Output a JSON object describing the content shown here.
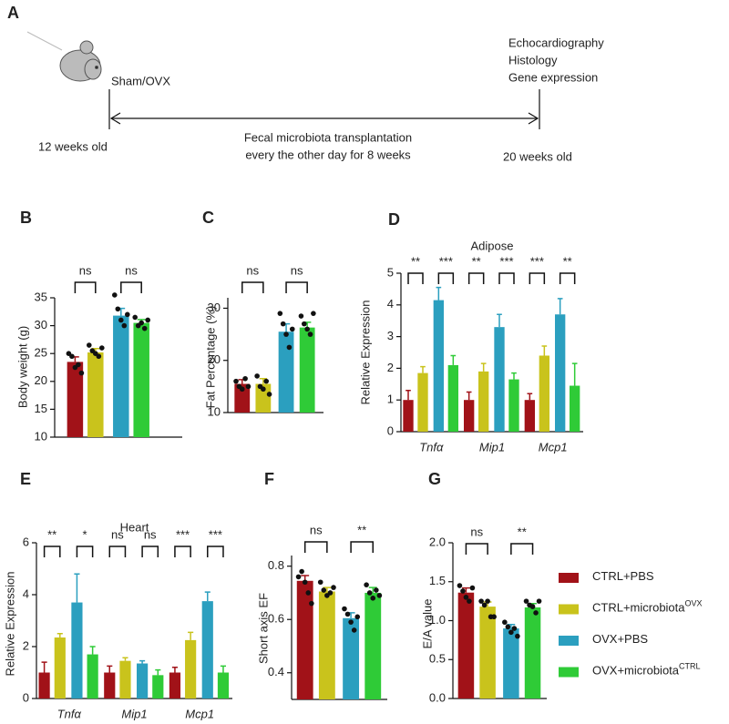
{
  "schematic": {
    "label": "A",
    "start_event": "Sham/OVX",
    "start_age": "12 weeks old",
    "treatment": [
      "Fecal microbiota transplantation",
      "every the other day for 8 weeks"
    ],
    "end_age": "20 weeks old",
    "endpoints": [
      "Echocardiography",
      "Histology",
      "Gene expression"
    ]
  },
  "legend": [
    {
      "name": "CTRL+PBS",
      "color": "#a11218"
    },
    {
      "name": "CTRL+microbiota",
      "sup": "OVX",
      "color": "#c9c31c"
    },
    {
      "name": "OVX+PBS",
      "color": "#2b9fbf"
    },
    {
      "name": "OVX+microbiota",
      "sup": "CTRL",
      "color": "#2fcb37"
    }
  ],
  "chart_data": [
    {
      "type": "bar",
      "label": "B",
      "ylabel": "Body weight (g)",
      "ylim": [
        10,
        35
      ],
      "yticks": [
        10,
        15,
        20,
        25,
        30,
        35
      ],
      "series": [
        {
          "values": [
            23.5
          ],
          "errors": [
            0.9
          ],
          "points": [
            [
              25,
              24.5,
              22.5,
              23,
              21.5
            ]
          ]
        },
        {
          "values": [
            25.2
          ],
          "errors": [
            0.7
          ],
          "points": [
            [
              26.5,
              25.5,
              25,
              24.5,
              26
            ]
          ]
        },
        {
          "values": [
            31.8
          ],
          "errors": [
            1.3
          ],
          "points": [
            [
              35.5,
              33,
              31,
              30,
              32
            ]
          ]
        },
        {
          "values": [
            30.5
          ],
          "errors": [
            0.6
          ],
          "points": [
            [
              31.5,
              30,
              30.5,
              29.5,
              31
            ]
          ]
        }
      ],
      "significance": [
        [
          "ns",
          "ns"
        ]
      ]
    },
    {
      "type": "bar",
      "label": "C",
      "ylabel": "Fat Percentage (%)",
      "ylim": [
        10,
        32
      ],
      "yticks": [
        10,
        20,
        30
      ],
      "series": [
        {
          "values": [
            15.5
          ],
          "errors": [
            0.8
          ],
          "points": [
            [
              16,
              15,
              14.5,
              16.5,
              15
            ]
          ]
        },
        {
          "values": [
            15.5
          ],
          "errors": [
            1.0
          ],
          "points": [
            [
              17,
              15,
              14.5,
              16,
              13.5
            ]
          ]
        },
        {
          "values": [
            25.5
          ],
          "errors": [
            1.5
          ],
          "points": [
            [
              29,
              27,
              25,
              22.5,
              26
            ]
          ]
        },
        {
          "values": [
            26.3
          ],
          "errors": [
            1.0
          ],
          "points": [
            [
              28.5,
              27,
              26,
              25,
              29
            ]
          ]
        }
      ],
      "significance": [
        [
          "ns",
          "ns"
        ]
      ]
    },
    {
      "type": "bar",
      "label": "D",
      "title": "Adipose",
      "ylabel": "Relative Expression",
      "ylim": [
        0,
        5
      ],
      "yticks": [
        0,
        1,
        2,
        3,
        4,
        5
      ],
      "categories": [
        "Tnfα",
        "Mip1",
        "Mcp1"
      ],
      "series": [
        {
          "values": [
            1.0,
            1.0,
            1.0
          ],
          "errors": [
            0.3,
            0.25,
            0.2
          ]
        },
        {
          "values": [
            1.85,
            1.9,
            2.4
          ],
          "errors": [
            0.2,
            0.25,
            0.3
          ]
        },
        {
          "values": [
            4.15,
            3.3,
            3.7
          ],
          "errors": [
            0.4,
            0.4,
            0.5
          ]
        },
        {
          "values": [
            2.1,
            1.65,
            1.45
          ],
          "errors": [
            0.3,
            0.2,
            0.7
          ]
        }
      ],
      "significance": [
        [
          "**",
          "***"
        ],
        [
          "**",
          "***"
        ],
        [
          "***",
          "**"
        ]
      ]
    },
    {
      "type": "bar",
      "label": "E",
      "title": "Heart",
      "ylabel": "Relative Expression",
      "ylim": [
        0,
        6
      ],
      "yticks": [
        0,
        2,
        4,
        6
      ],
      "categories": [
        "Tnfα",
        "Mip1",
        "Mcp1"
      ],
      "series": [
        {
          "values": [
            1.0,
            1.0,
            1.0
          ],
          "errors": [
            0.4,
            0.25,
            0.2
          ]
        },
        {
          "values": [
            2.35,
            1.45,
            2.25
          ],
          "errors": [
            0.15,
            0.12,
            0.3
          ]
        },
        {
          "values": [
            3.7,
            1.35,
            3.75
          ],
          "errors": [
            1.1,
            0.1,
            0.35
          ]
        },
        {
          "values": [
            1.7,
            0.9,
            1.0
          ],
          "errors": [
            0.3,
            0.2,
            0.25
          ]
        }
      ],
      "significance": [
        [
          "**",
          "*"
        ],
        [
          "ns",
          "ns"
        ],
        [
          "***",
          "***"
        ]
      ]
    },
    {
      "type": "bar",
      "label": "F",
      "ylabel": "Short axis EF",
      "ylim": [
        0.3,
        0.84
      ],
      "yticks": [
        0.4,
        0.6,
        0.8
      ],
      "series": [
        {
          "values": [
            0.745
          ],
          "errors": [
            0.02
          ],
          "points": [
            [
              0.76,
              0.78,
              0.74,
              0.7,
              0.66
            ]
          ]
        },
        {
          "values": [
            0.705
          ],
          "errors": [
            0.015
          ],
          "points": [
            [
              0.74,
              0.71,
              0.69,
              0.7,
              0.72
            ]
          ]
        },
        {
          "values": [
            0.605
          ],
          "errors": [
            0.02
          ],
          "points": [
            [
              0.64,
              0.62,
              0.59,
              0.56,
              0.61
            ]
          ]
        },
        {
          "values": [
            0.7
          ],
          "errors": [
            0.02
          ],
          "points": [
            [
              0.73,
              0.7,
              0.68,
              0.71,
              0.69
            ]
          ]
        }
      ],
      "significance": [
        [
          "ns",
          "**"
        ]
      ]
    },
    {
      "type": "bar",
      "label": "G",
      "ylabel": "E/A value",
      "ylim": [
        0,
        2
      ],
      "yticks": [
        {
          "value": 0,
          "label": "0.0"
        },
        {
          "value": 0.5,
          "label": "0.5"
        },
        {
          "value": 1,
          "label": "1.0"
        },
        {
          "value": 1.5,
          "label": "1.5"
        },
        {
          "value": 2,
          "label": "2.0"
        }
      ],
      "series": [
        {
          "values": [
            1.36
          ],
          "errors": [
            0.06
          ],
          "points": [
            [
              1.45,
              1.38,
              1.3,
              1.25,
              1.42
            ]
          ]
        },
        {
          "values": [
            1.18
          ],
          "errors": [
            0.06
          ],
          "points": [
            [
              1.25,
              1.2,
              1.25,
              1.05,
              1.05
            ]
          ]
        },
        {
          "values": [
            0.9
          ],
          "errors": [
            0.05
          ],
          "points": [
            [
              0.98,
              0.92,
              0.85,
              0.9,
              0.8
            ]
          ]
        },
        {
          "values": [
            1.17
          ],
          "errors": [
            0.05
          ],
          "points": [
            [
              1.25,
              1.2,
              1.18,
              1.1,
              1.25
            ]
          ]
        }
      ],
      "significance": [
        [
          "ns",
          "**"
        ]
      ]
    }
  ]
}
